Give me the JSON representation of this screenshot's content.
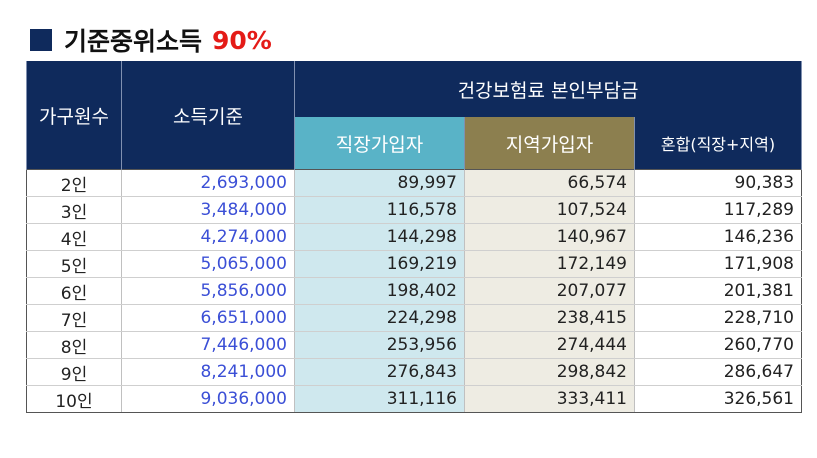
{
  "title": {
    "main": "기준중위소득",
    "percent": "90%"
  },
  "table": {
    "headers": {
      "household": "가구원수",
      "income": "소득기준",
      "premium_group": "건강보험료 본인부담금",
      "workplace": "직장가입자",
      "regional": "지역가입자",
      "mixed": "혼합(직장+지역)"
    },
    "rows": [
      {
        "household": "2인",
        "income": "2,693,000",
        "workplace": "89,997",
        "regional": "66,574",
        "mixed": "90,383"
      },
      {
        "household": "3인",
        "income": "3,484,000",
        "workplace": "116,578",
        "regional": "107,524",
        "mixed": "117,289"
      },
      {
        "household": "4인",
        "income": "4,274,000",
        "workplace": "144,298",
        "regional": "140,967",
        "mixed": "146,236"
      },
      {
        "household": "5인",
        "income": "5,065,000",
        "workplace": "169,219",
        "regional": "172,149",
        "mixed": "171,908"
      },
      {
        "household": "6인",
        "income": "5,856,000",
        "workplace": "198,402",
        "regional": "207,077",
        "mixed": "201,381"
      },
      {
        "household": "7인",
        "income": "6,651,000",
        "workplace": "224,298",
        "regional": "238,415",
        "mixed": "228,710"
      },
      {
        "household": "8인",
        "income": "7,446,000",
        "workplace": "253,956",
        "regional": "274,444",
        "mixed": "260,770"
      },
      {
        "household": "9인",
        "income": "8,241,000",
        "workplace": "276,843",
        "regional": "298,842",
        "mixed": "286,647"
      },
      {
        "household": "10인",
        "income": "9,036,000",
        "workplace": "311,116",
        "regional": "333,411",
        "mixed": "326,561"
      }
    ]
  }
}
